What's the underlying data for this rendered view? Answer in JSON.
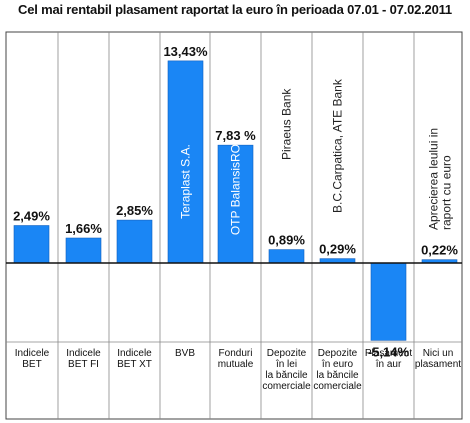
{
  "chart_data": {
    "type": "bar",
    "title": "Cel mai rentabil plasament raportat la euro în perioada 07.01 - 07.02.2011",
    "categories": [
      [
        "Indicele",
        "BET"
      ],
      [
        "Indicele",
        "BET FI"
      ],
      [
        "Indicele",
        "BET XT"
      ],
      [
        "BVB"
      ],
      [
        "Fonduri",
        "mutuale"
      ],
      [
        "Depozite",
        "în lei",
        "la băncile",
        "comerciale"
      ],
      [
        "Depozite",
        "în euro",
        "la băncile",
        "comerciale"
      ],
      [
        "Plasament",
        "în aur"
      ],
      [
        "Nici un",
        "plasament"
      ]
    ],
    "values": [
      2.49,
      1.66,
      2.85,
      13.43,
      7.83,
      0.89,
      0.29,
      -5.14,
      0.22
    ],
    "value_labels": [
      "2,49%",
      "1,66%",
      "2,85%",
      "13,43%",
      "7,83 %",
      "0,89%",
      "0,29%",
      "-5,14%",
      "0,22%"
    ],
    "bar_names": [
      "",
      "",
      "",
      "Teraplast S.A.",
      "OTP BalansisRO",
      "Piraeus Bank",
      "B.C.Carpatica, ATE Bank",
      "",
      [
        "Aprecierea leului in",
        "raport cu euro"
      ]
    ],
    "bar_color": "#1a86f5",
    "bar_edge_color": "#0f5fbf",
    "axis_color": "#111111",
    "grid": false,
    "legend": "none"
  }
}
